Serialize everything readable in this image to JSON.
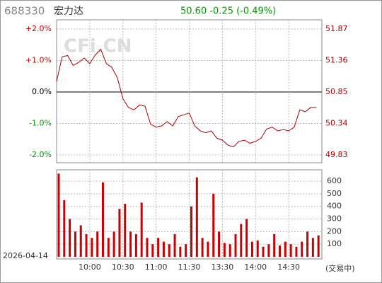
{
  "chart_data": [
    {
      "type": "line",
      "title": "688330",
      "subtitle": "宏力达",
      "quote": "50.60 -0.25 (-0.49%)",
      "watermark": "CFi.CN",
      "x": [
        "09:30",
        "09:35",
        "09:40",
        "09:45",
        "09:50",
        "09:55",
        "10:00",
        "10:05",
        "10:10",
        "10:15",
        "10:20",
        "10:25",
        "10:30",
        "10:35",
        "10:40",
        "10:45",
        "10:50",
        "10:55",
        "11:00",
        "11:05",
        "11:10",
        "11:15",
        "11:20",
        "11:25",
        "11:30",
        "13:05",
        "13:10",
        "13:15",
        "13:20",
        "13:25",
        "13:30",
        "13:35",
        "13:40",
        "13:45",
        "13:50",
        "13:55",
        "14:00",
        "14:05",
        "14:10",
        "14:15",
        "14:20",
        "14:25",
        "14:30",
        "14:35",
        "14:40",
        "14:45",
        "14:50",
        "14:55"
      ],
      "values": [
        51.02,
        51.42,
        51.44,
        51.28,
        51.33,
        51.4,
        51.31,
        51.45,
        51.54,
        51.31,
        51.25,
        51.08,
        50.74,
        50.6,
        50.56,
        50.64,
        50.62,
        50.33,
        50.28,
        50.3,
        50.37,
        50.3,
        50.45,
        50.48,
        50.51,
        50.3,
        50.22,
        50.19,
        50.22,
        50.1,
        50.07,
        49.99,
        49.96,
        50.05,
        50.07,
        50.02,
        50.05,
        50.1,
        50.25,
        50.28,
        50.22,
        50.24,
        50.22,
        50.28,
        50.56,
        50.53,
        50.6,
        50.6
      ],
      "color": "#b00000",
      "ylim": [
        49.83,
        51.87
      ],
      "yticks": [
        49.83,
        50.34,
        50.85,
        51.36,
        51.87
      ],
      "y2lim": [
        -2,
        2
      ],
      "y2ticks": [
        {
          "value": -2,
          "label": "-2.0%"
        },
        {
          "value": -1,
          "label": "-1.0%"
        },
        {
          "value": 0,
          "label": "0.0%"
        },
        {
          "value": 1,
          "label": "+1.0%"
        },
        {
          "value": 2,
          "label": "+2.0%"
        }
      ],
      "grid": true
    },
    {
      "type": "bar",
      "date": "2026-04-14",
      "status": "(交易中)",
      "x": [
        "09:30",
        "09:35",
        "09:40",
        "09:45",
        "09:50",
        "09:55",
        "10:00",
        "10:05",
        "10:10",
        "10:15",
        "10:20",
        "10:25",
        "10:30",
        "10:35",
        "10:40",
        "10:45",
        "10:50",
        "10:55",
        "11:00",
        "11:05",
        "11:10",
        "11:15",
        "11:20",
        "11:25",
        "11:30",
        "13:05",
        "13:10",
        "13:15",
        "13:20",
        "13:25",
        "13:30",
        "13:35",
        "13:40",
        "13:45",
        "13:50",
        "13:55",
        "14:00",
        "14:05",
        "14:10",
        "14:15",
        "14:20",
        "14:25",
        "14:30",
        "14:35",
        "14:40",
        "14:45",
        "14:50",
        "14:55"
      ],
      "values": [
        660,
        450,
        300,
        200,
        250,
        180,
        150,
        200,
        590,
        150,
        200,
        380,
        420,
        200,
        180,
        430,
        150,
        100,
        150,
        120,
        100,
        180,
        80,
        100,
        400,
        630,
        150,
        120,
        500,
        200,
        110,
        100,
        180,
        260,
        300,
        120,
        130,
        80,
        100,
        180,
        90,
        120,
        100,
        80,
        120,
        200,
        150,
        170
      ],
      "color": "#cc0000",
      "ylim": [
        0,
        690
      ],
      "yticks": [
        100,
        200,
        300,
        400,
        500,
        600
      ],
      "xticks": [
        "10:00",
        "10:30",
        "11:00",
        "11:30",
        "13:30",
        "14:00",
        "14:30"
      ],
      "grid": true
    }
  ]
}
